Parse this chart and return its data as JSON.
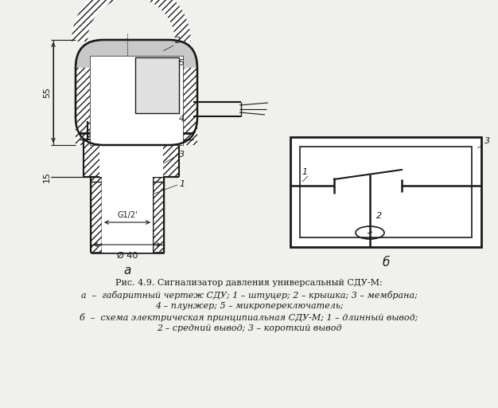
{
  "bg_color": "#f0f0ec",
  "line_color": "#1a1a1a",
  "white": "#ffffff",
  "gray_light": "#d8d8d8",
  "caption_title": "Рис. 4.9. Сигнализатор давления универсальный СДУ-М:",
  "caption_line2": "а  –  габаритный чертеж СДУ; 1 – штуцер; 2 – крышка; 3 – мембрана;",
  "caption_line3": "4 – плунжер; 5 – микропереключатель;",
  "caption_line4": "б  –  схема электрическая принципиальная СДУ-М; 1 – длинный вывод;",
  "caption_line5": "2 – средний вывод; 3 – короткий вывод",
  "label_a": "а",
  "label_b": "б",
  "dim_55": "55",
  "dim_15": "15",
  "dim_g12": "G1/2'",
  "dim_phi40": "Ø 40"
}
